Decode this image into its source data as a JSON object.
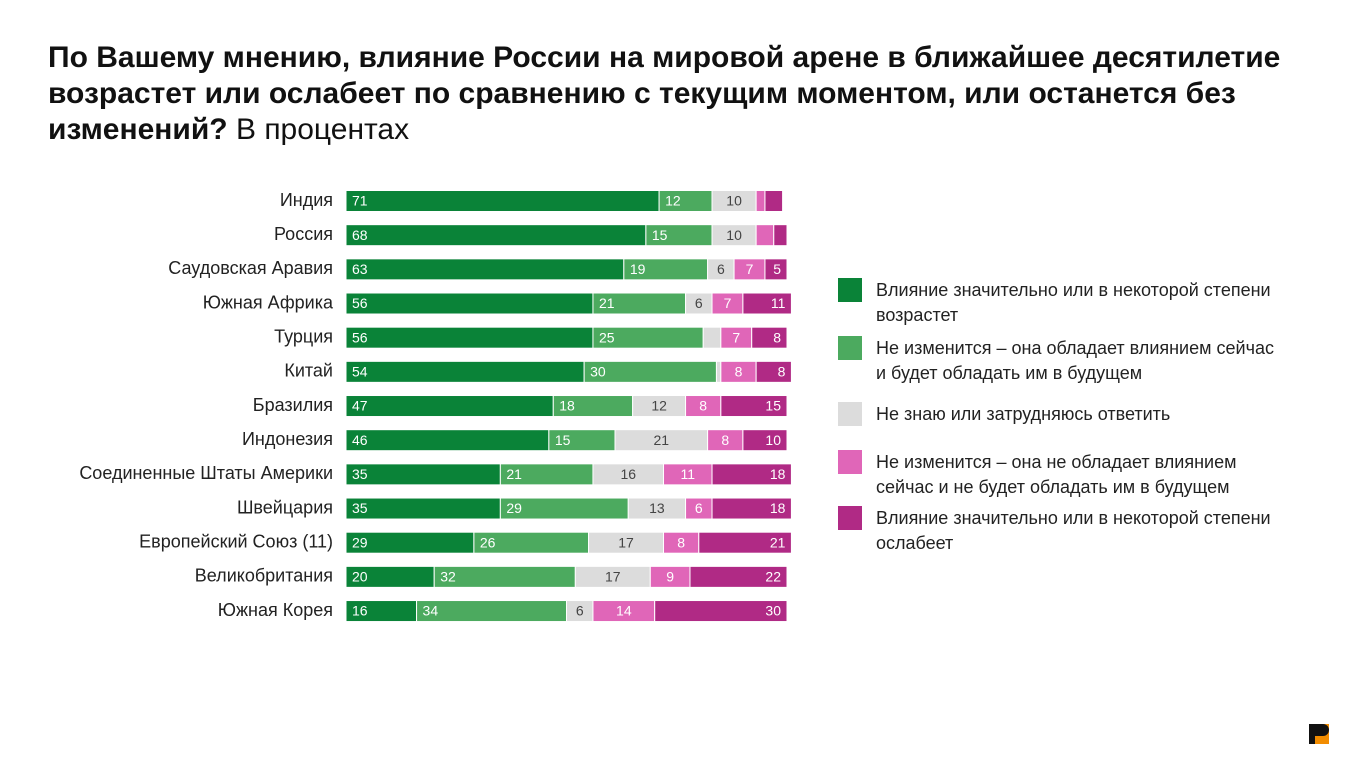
{
  "chart_data": {
    "type": "stacked-bar",
    "title": "По Вашему мнению, влияние России на мировой арене в ближайшее десятилетие возрастет или ослабеет по сравнению с текущим моментом, или останется без изменений?",
    "subtitle": "В процентах",
    "categories": [
      "Индия",
      "Россия",
      "Саудовская Аравия",
      "Южная Африка",
      "Турция",
      "Китай",
      "Бразилия",
      "Индонезия",
      "Соединенные Штаты Америки",
      "Швейцария",
      "Европейский Союз (11)",
      "Великобритания",
      "Южная Корея"
    ],
    "xlim": [
      0,
      100
    ],
    "series": [
      {
        "name": "Влияние значительно или в некоторой степени возрастет",
        "color": "#0a8338",
        "values": [
          71,
          68,
          63,
          56,
          56,
          54,
          47,
          46,
          35,
          35,
          29,
          20,
          16
        ]
      },
      {
        "name": "Не изменится – она обладает влиянием сейчас и будет обладать им в будущем",
        "color": "#4caa5f",
        "values": [
          12,
          15,
          19,
          21,
          25,
          30,
          18,
          15,
          21,
          29,
          26,
          32,
          34
        ]
      },
      {
        "name": "Не знаю или затрудняюсь ответить",
        "color": "#dcdcdc",
        "values": [
          10,
          10,
          6,
          6,
          4,
          1,
          12,
          21,
          16,
          13,
          17,
          17,
          6
        ]
      },
      {
        "name": "Не изменится – она не обладает влиянием сейчас и не будет обладать им в будущем",
        "color": "#e066b8",
        "values": [
          2,
          4,
          7,
          7,
          7,
          8,
          8,
          8,
          11,
          6,
          8,
          9,
          14
        ]
      },
      {
        "name": "Влияние значительно или в некоторой степени ослабеет",
        "color": "#b02a85",
        "values": [
          4,
          3,
          5,
          11,
          8,
          8,
          15,
          10,
          18,
          18,
          21,
          22,
          30
        ]
      }
    ]
  }
}
